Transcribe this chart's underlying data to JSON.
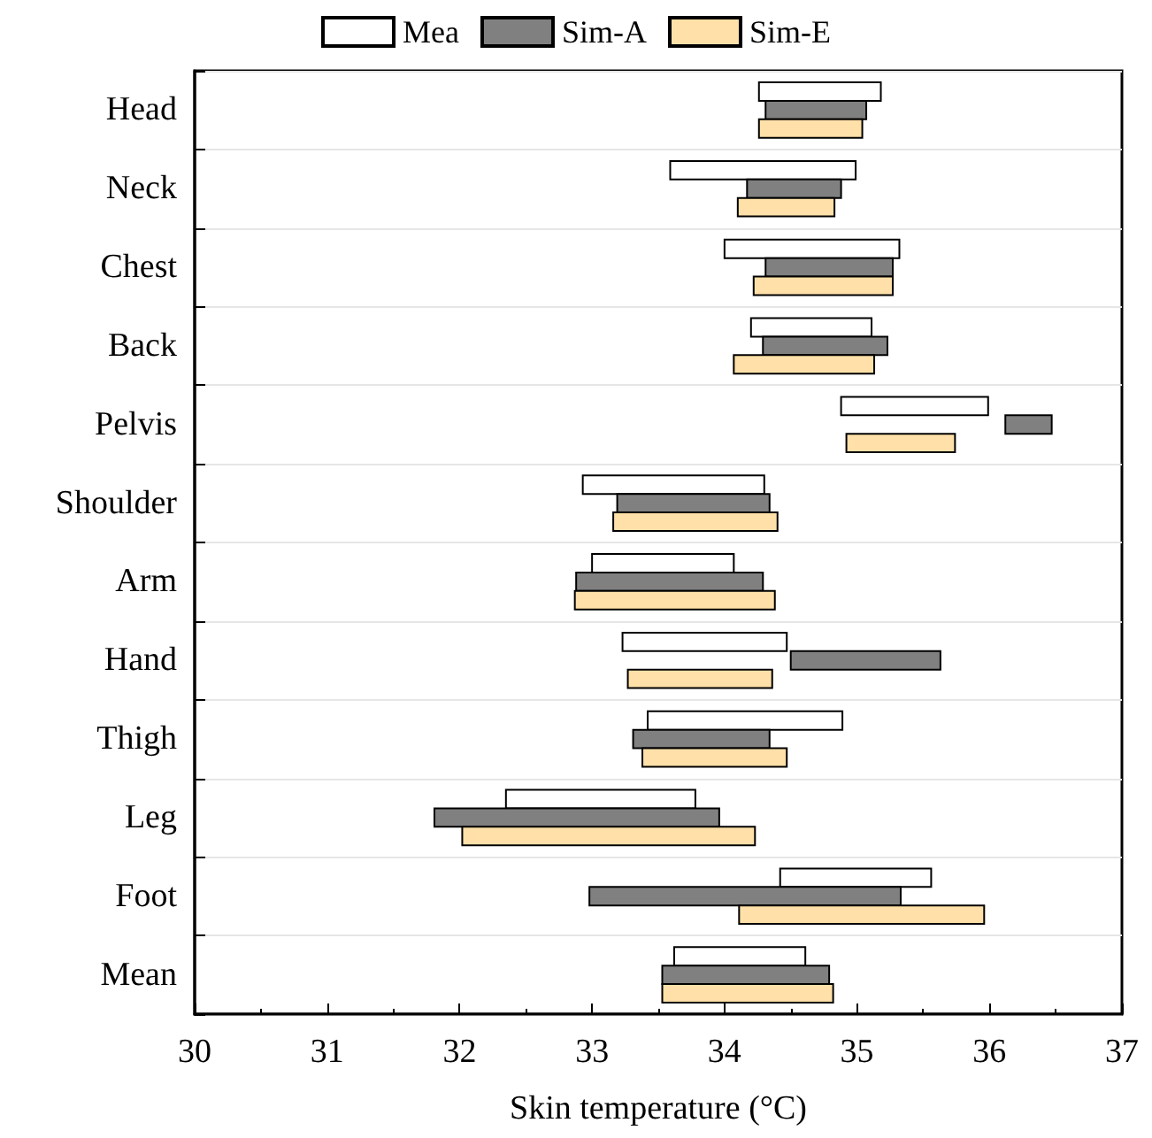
{
  "chart_data": {
    "type": "bar",
    "orientation": "horizontal",
    "xlabel": "Skin temperature (°C)",
    "categories": [
      "Head",
      "Neck",
      "Chest",
      "Back",
      "Pelvis",
      "Shoulder",
      "Arm",
      "Hand",
      "Thigh",
      "Leg",
      "Foot",
      "Mean"
    ],
    "series": [
      {
        "name": "Mea",
        "color": "#ffffff",
        "base": [
          34.26,
          33.59,
          34.0,
          34.2,
          34.88,
          32.93,
          33.0,
          33.23,
          33.42,
          32.35,
          34.42,
          33.62
        ],
        "values": [
          0.92,
          1.4,
          1.32,
          0.91,
          1.11,
          1.37,
          1.07,
          1.24,
          1.47,
          1.43,
          1.14,
          0.99
        ]
      },
      {
        "name": "Sim-A",
        "color": "#808080",
        "base": [
          34.31,
          34.17,
          34.31,
          34.29,
          36.12,
          33.19,
          32.88,
          34.5,
          33.31,
          31.81,
          32.98,
          33.53
        ],
        "values": [
          0.76,
          0.71,
          0.96,
          0.94,
          0.35,
          1.15,
          1.41,
          1.13,
          1.03,
          2.15,
          2.35,
          1.26
        ]
      },
      {
        "name": "Sim-E",
        "color": "#ffe0a8",
        "base": [
          34.26,
          34.1,
          34.22,
          34.07,
          34.92,
          33.16,
          32.87,
          33.27,
          33.38,
          32.02,
          34.11,
          33.53
        ],
        "values": [
          0.78,
          0.73,
          1.05,
          1.06,
          0.82,
          1.24,
          1.51,
          1.09,
          1.09,
          2.21,
          1.85,
          1.29
        ]
      }
    ],
    "xlim": [
      30,
      37
    ],
    "xticks": [
      30,
      31,
      32,
      33,
      34,
      35,
      36,
      37
    ],
    "grid": "y",
    "legend": "top"
  }
}
